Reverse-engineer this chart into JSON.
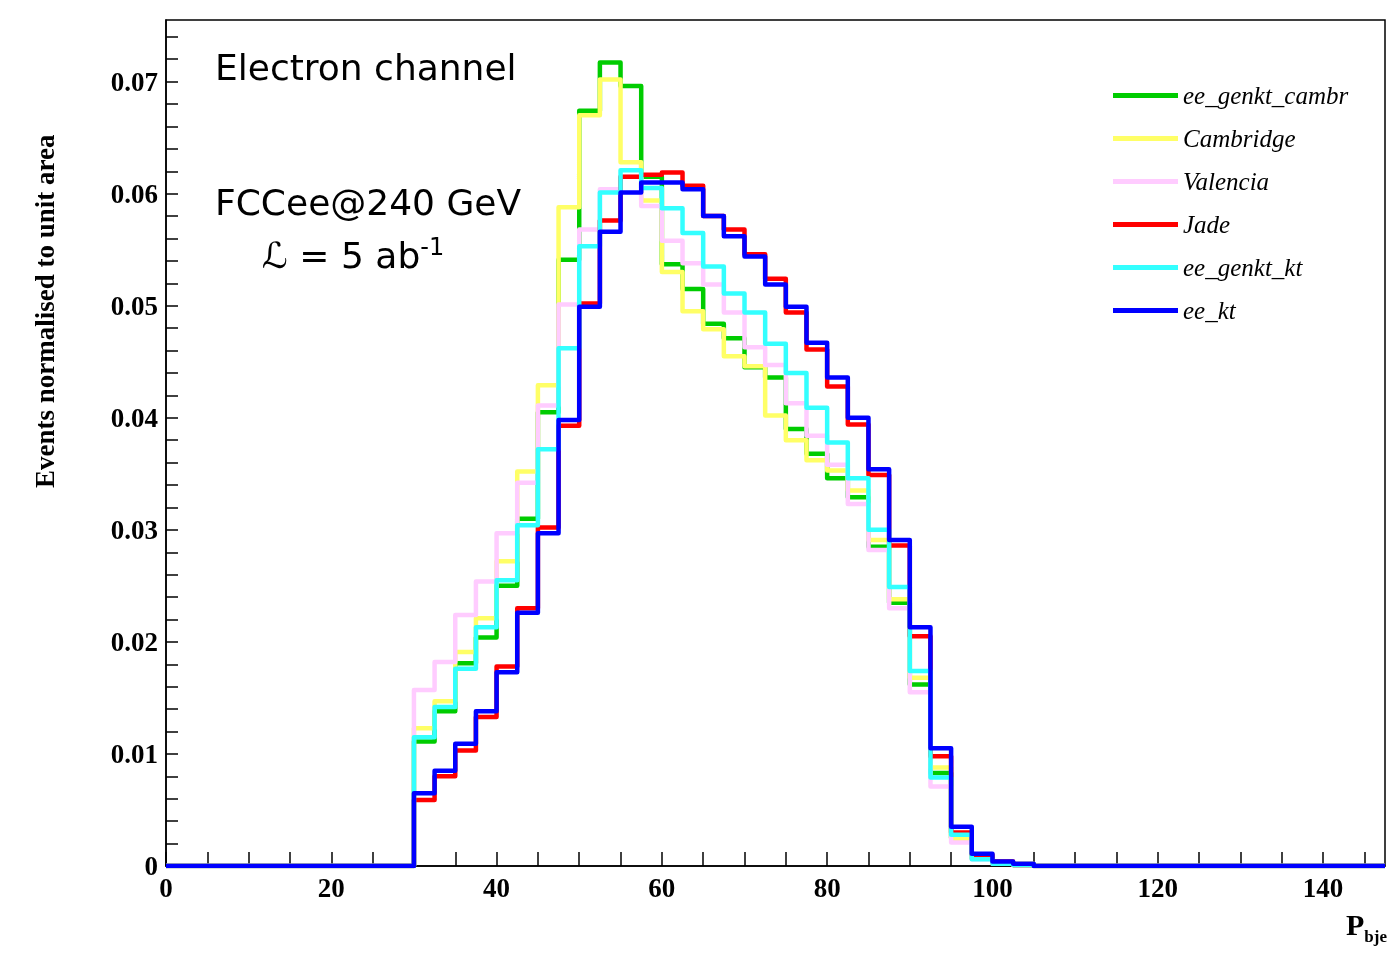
{
  "chart_data": {
    "type": "histogram",
    "xlabel": "P$_{bje}$",
    "ylabel": "Events normalised to unit area",
    "annotations": [
      "Electron channel",
      "FCCee@240 GeV",
      "ℒ = 5 ab$^{-1}$"
    ],
    "legend": "top right",
    "line_style": "solid",
    "xlim": [
      0,
      147.5
    ],
    "ylim": [
      0,
      0.0755
    ],
    "xticks": [
      0,
      {
        "value": 5,
        "label": null
      },
      {
        "value": 10,
        "label": null
      },
      {
        "value": 15,
        "label": null
      },
      20,
      {
        "value": 25,
        "label": null
      },
      {
        "value": 30,
        "label": null
      },
      {
        "value": 35,
        "label": null
      },
      40,
      {
        "value": 45,
        "label": null
      },
      {
        "value": 50,
        "label": null
      },
      {
        "value": 55,
        "label": null
      },
      60,
      {
        "value": 65,
        "label": null
      },
      {
        "value": 70,
        "label": null
      },
      {
        "value": 75,
        "label": null
      },
      80,
      {
        "value": 85,
        "label": null
      },
      {
        "value": 90,
        "label": null
      },
      {
        "value": 95,
        "label": null
      },
      100,
      {
        "value": 105,
        "label": null
      },
      {
        "value": 110,
        "label": null
      },
      {
        "value": 115,
        "label": null
      },
      120,
      {
        "value": 125,
        "label": null
      },
      {
        "value": 130,
        "label": null
      },
      {
        "value": 135,
        "label": null
      },
      140,
      {
        "value": 145,
        "label": null
      }
    ],
    "yticks": [
      0,
      {
        "value": 0.002,
        "label": null
      },
      {
        "value": 0.004,
        "label": null
      },
      {
        "value": 0.006,
        "label": null
      },
      {
        "value": 0.008,
        "label": null
      },
      0.01,
      {
        "value": 0.012,
        "label": null
      },
      {
        "value": 0.014,
        "label": null
      },
      {
        "value": 0.016,
        "label": null
      },
      {
        "value": 0.018,
        "label": null
      },
      0.02,
      {
        "value": 0.022,
        "label": null
      },
      {
        "value": 0.024,
        "label": null
      },
      {
        "value": 0.026,
        "label": null
      },
      {
        "value": 0.028,
        "label": null
      },
      0.03,
      {
        "value": 0.032,
        "label": null
      },
      {
        "value": 0.034,
        "label": null
      },
      {
        "value": 0.036,
        "label": null
      },
      {
        "value": 0.038,
        "label": null
      },
      0.04,
      {
        "value": 0.042,
        "label": null
      },
      {
        "value": 0.044,
        "label": null
      },
      {
        "value": 0.046,
        "label": null
      },
      {
        "value": 0.048,
        "label": null
      },
      0.05,
      {
        "value": 0.052,
        "label": null
      },
      {
        "value": 0.054,
        "label": null
      },
      {
        "value": 0.056,
        "label": null
      },
      {
        "value": 0.058,
        "label": null
      },
      0.06,
      {
        "value": 0.062,
        "label": null
      },
      {
        "value": 0.064,
        "label": null
      },
      {
        "value": 0.066,
        "label": null
      },
      {
        "value": 0.068,
        "label": null
      },
      0.07,
      {
        "value": 0.072,
        "label": null
      },
      {
        "value": 0.074,
        "label": null
      }
    ],
    "bins": [
      0,
      2.5,
      5,
      7.5,
      10,
      12.5,
      15,
      17.5,
      20,
      22.5,
      25,
      27.5,
      30,
      32.5,
      35,
      37.5,
      40,
      42.5,
      45,
      47.5,
      50,
      52.5,
      55,
      57.5,
      60,
      62.5,
      65,
      67.5,
      70,
      72.5,
      75,
      77.5,
      80,
      82.5,
      85,
      87.5,
      90,
      92.5,
      95,
      97.5,
      100,
      102.5,
      105,
      107.5,
      110,
      112.5,
      115,
      117.5,
      120,
      122.5,
      125,
      127.5,
      130,
      132.5,
      135,
      137.5,
      140,
      142.5,
      145,
      147.5
    ],
    "series": [
      {
        "name": "ee_genkt_cambr",
        "color": "#00cc00",
        "values": [
          0,
          0,
          0,
          0,
          0,
          0,
          0,
          0,
          0,
          0,
          0,
          0,
          0.0111,
          0.0138,
          0.0181,
          0.0204,
          0.025,
          0.031,
          0.0405,
          0.0541,
          0.0674,
          0.0717,
          0.0696,
          0.0615,
          0.0537,
          0.0515,
          0.0484,
          0.0471,
          0.0445,
          0.0436,
          0.039,
          0.0368,
          0.0346,
          0.0329,
          0.0285,
          0.0235,
          0.0162,
          0.0083,
          0.0025,
          0.0007,
          0.0003,
          0.0001,
          0,
          0,
          0,
          0,
          0,
          0,
          0,
          0,
          0,
          0,
          0,
          0,
          0,
          0,
          0,
          0,
          0
        ]
      },
      {
        "name": "Cambridge",
        "color": "#ffff66",
        "values": [
          0,
          0,
          0,
          0,
          0,
          0,
          0,
          0,
          0,
          0,
          0,
          0,
          0.0123,
          0.0147,
          0.0191,
          0.0221,
          0.0272,
          0.0352,
          0.0429,
          0.0588,
          0.067,
          0.0702,
          0.0628,
          0.0594,
          0.053,
          0.0495,
          0.0479,
          0.0455,
          0.0446,
          0.0402,
          0.038,
          0.0362,
          0.0353,
          0.0335,
          0.0291,
          0.0238,
          0.0168,
          0.0088,
          0.0024,
          0.0007,
          0.0003,
          0.0002,
          0,
          0,
          0,
          0,
          0,
          0,
          0,
          0,
          0,
          0,
          0,
          0,
          0,
          0,
          0,
          0,
          0
        ]
      },
      {
        "name": "Valencia",
        "color": "#ffccff",
        "values": [
          0,
          0,
          0,
          0,
          0,
          0,
          0,
          0,
          0,
          0,
          0,
          0,
          0.0157,
          0.0182,
          0.0224,
          0.0254,
          0.0297,
          0.0342,
          0.0411,
          0.0501,
          0.0568,
          0.0604,
          0.0615,
          0.0589,
          0.0558,
          0.0538,
          0.0519,
          0.0494,
          0.0463,
          0.0447,
          0.0413,
          0.0384,
          0.0358,
          0.0323,
          0.0282,
          0.023,
          0.0155,
          0.0071,
          0.0021,
          0.0006,
          0.0002,
          0.0001,
          0,
          0,
          0,
          0,
          0,
          0,
          0,
          0,
          0,
          0,
          0,
          0,
          0,
          0,
          0,
          0,
          0
        ]
      },
      {
        "name": "Jade",
        "color": "#ff0000",
        "values": [
          0,
          0,
          0,
          0,
          0,
          0,
          0,
          0,
          0,
          0,
          0,
          0,
          0.0059,
          0.008,
          0.0103,
          0.0133,
          0.0178,
          0.023,
          0.0302,
          0.0393,
          0.0502,
          0.0576,
          0.0615,
          0.0617,
          0.0619,
          0.0607,
          0.058,
          0.0568,
          0.0546,
          0.0524,
          0.0494,
          0.0461,
          0.0428,
          0.0394,
          0.0349,
          0.0286,
          0.0205,
          0.0098,
          0.003,
          0.001,
          0.0004,
          0.0001,
          0,
          0,
          0,
          0,
          0,
          0,
          0,
          0,
          0,
          0,
          0,
          0,
          0,
          0,
          0,
          0,
          0
        ]
      },
      {
        "name": "ee_genkt_kt",
        "color": "#33ffff",
        "values": [
          0,
          0,
          0,
          0,
          0,
          0,
          0,
          0,
          0,
          0,
          0,
          0,
          0.0115,
          0.0142,
          0.0176,
          0.0213,
          0.0255,
          0.0304,
          0.0372,
          0.0462,
          0.0553,
          0.0601,
          0.0621,
          0.0605,
          0.0587,
          0.0565,
          0.0535,
          0.0511,
          0.0494,
          0.0466,
          0.044,
          0.0409,
          0.0378,
          0.0346,
          0.03,
          0.0249,
          0.0174,
          0.0079,
          0.0028,
          0.0006,
          0.0002,
          0.0001,
          0,
          0,
          0,
          0,
          0,
          0,
          0,
          0,
          0,
          0,
          0,
          0,
          0,
          0,
          0,
          0,
          0
        ]
      },
      {
        "name": "ee_kt",
        "color": "#0000ff",
        "values": [
          0,
          0,
          0,
          0,
          0,
          0,
          0,
          0,
          0,
          0,
          0,
          0,
          0.0065,
          0.0085,
          0.0109,
          0.0138,
          0.0173,
          0.0226,
          0.0297,
          0.0398,
          0.0499,
          0.0566,
          0.0601,
          0.061,
          0.061,
          0.0604,
          0.058,
          0.0562,
          0.0544,
          0.0519,
          0.0499,
          0.0467,
          0.0436,
          0.04,
          0.0354,
          0.0291,
          0.0213,
          0.0105,
          0.0035,
          0.0011,
          0.0004,
          0.0002,
          0,
          0,
          0,
          0,
          0,
          0,
          0,
          0,
          0,
          0,
          0,
          0,
          0,
          0,
          0,
          0,
          0
        ]
      }
    ]
  }
}
